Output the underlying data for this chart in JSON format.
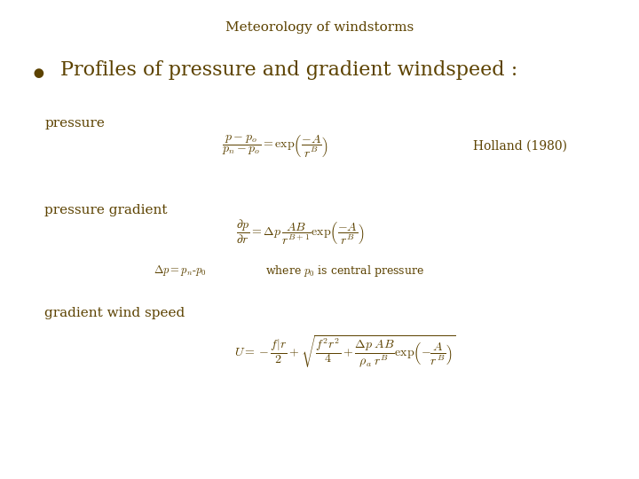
{
  "title": "Meteorology of windstorms",
  "text_color": "#5c4200",
  "bg_color": "#ffffff",
  "title_fontsize": 11,
  "bullet_fontsize": 16,
  "label_fontsize": 11,
  "eq_fontsize": 10,
  "note_fontsize": 10,
  "sub_fontsize": 9,
  "eq1_note": "Holland (1980)",
  "label_pressure": "pressure",
  "label_pressure_gradient": "pressure gradient",
  "label_gradient_wind": "gradient wind speed"
}
